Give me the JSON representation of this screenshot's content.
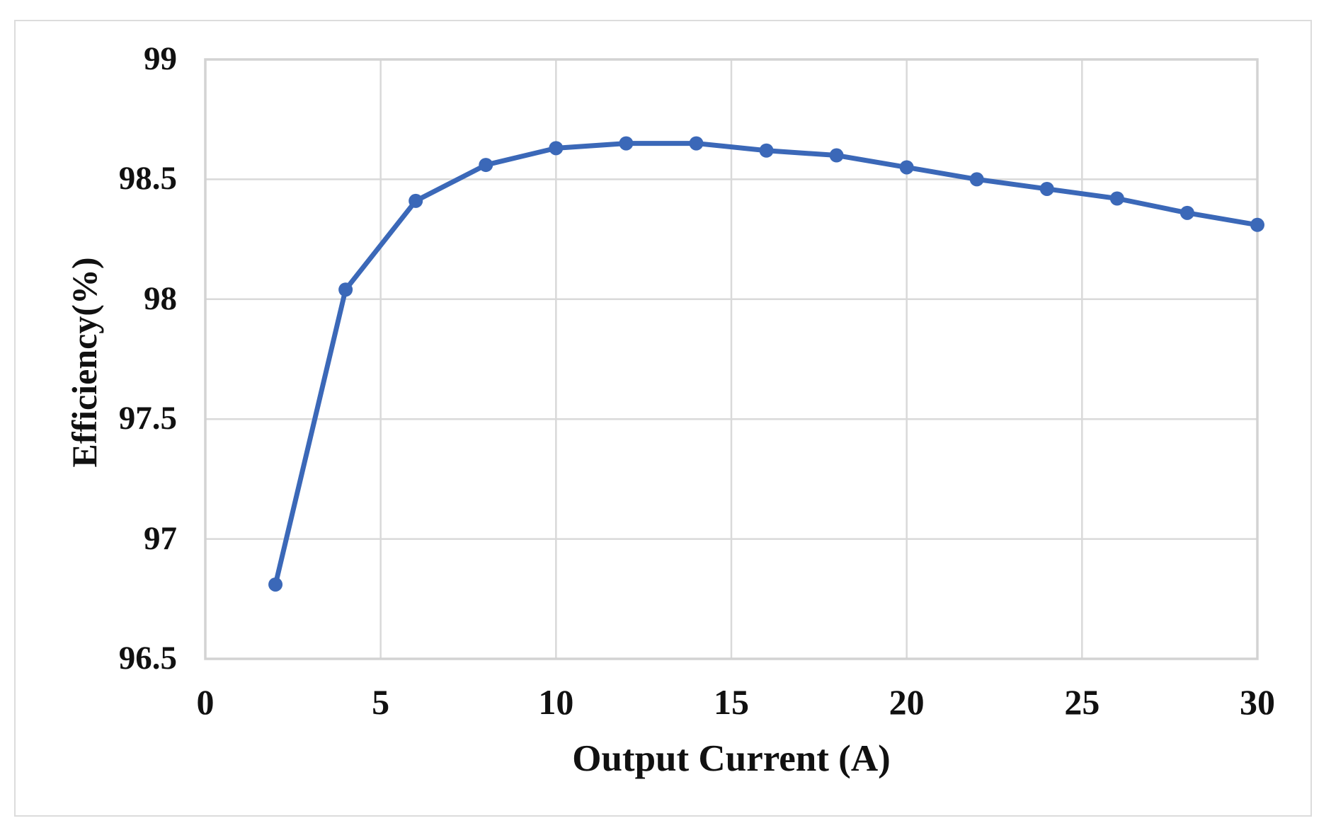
{
  "figure": {
    "background": "#FFFFFF",
    "border_color": "#DCDCDC"
  },
  "chart_data": {
    "type": "line",
    "title": "",
    "xlabel": "Output Current (A)",
    "ylabel": "Efficiency(%)",
    "x": [
      2,
      4,
      6,
      8,
      10,
      12,
      14,
      16,
      18,
      20,
      22,
      24,
      26,
      28,
      30
    ],
    "series": [
      {
        "name": "Efficiency",
        "color": "#3B68B8",
        "values": [
          96.81,
          98.04,
          98.41,
          98.56,
          98.63,
          98.65,
          98.65,
          98.62,
          98.6,
          98.55,
          98.5,
          98.46,
          98.42,
          98.36,
          98.31
        ]
      }
    ],
    "xlim": [
      0,
      30
    ],
    "ylim": [
      96.5,
      99
    ],
    "x_tick_labels": [
      "0",
      "5",
      "10",
      "15",
      "20",
      "25",
      "30"
    ],
    "x_tick_values": [
      0,
      5,
      10,
      15,
      20,
      25,
      30
    ],
    "y_tick_labels": [
      "96.5",
      "97",
      "97.5",
      "98",
      "98.5",
      "99"
    ],
    "y_tick_values": [
      96.5,
      97,
      97.5,
      98,
      98.5,
      99
    ],
    "grid": true,
    "gridline_color": "#D9D9D9",
    "plot_border_color": "#D3D3D3",
    "legend": "none",
    "marker": "circle",
    "marker_radius": 10,
    "line_width": 7
  }
}
